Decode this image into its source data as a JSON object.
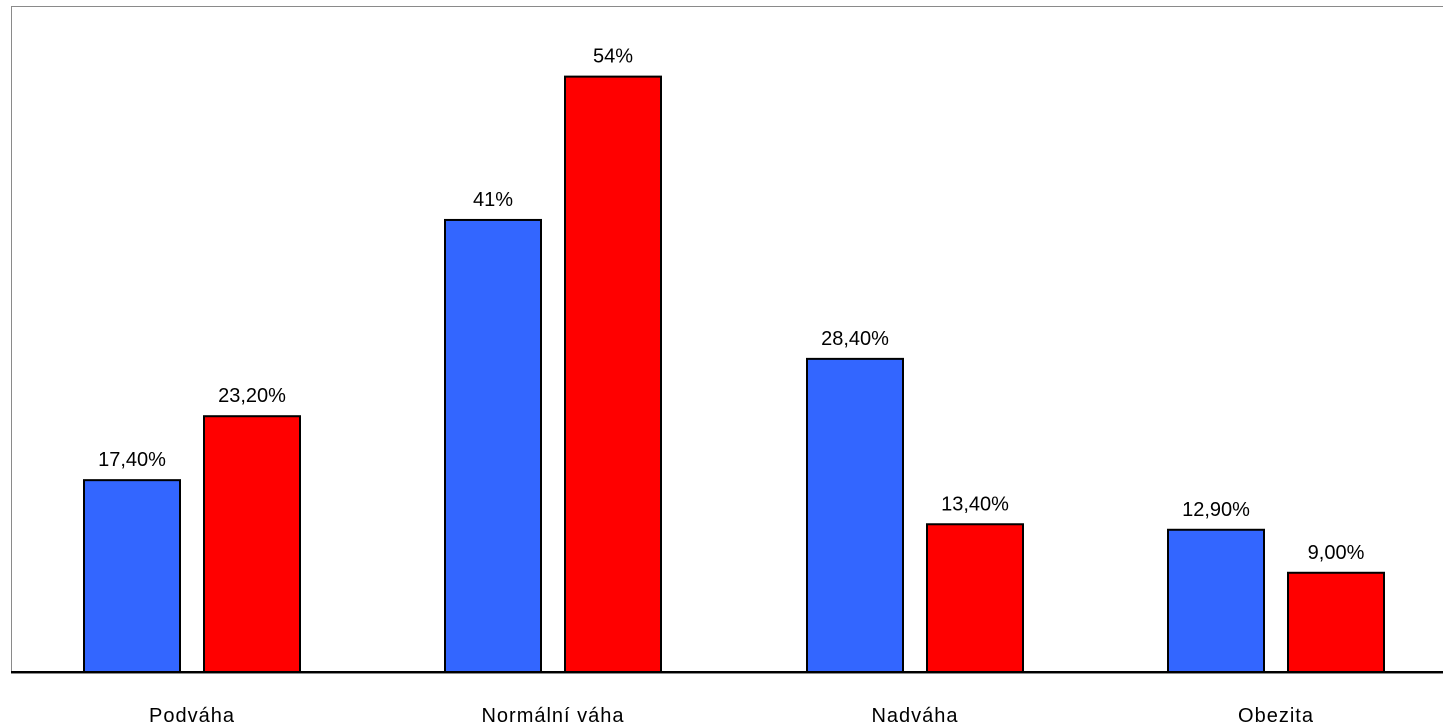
{
  "chart_data": {
    "type": "bar",
    "title": "",
    "xlabel": "",
    "ylabel": "",
    "ylim": [
      0,
      58.5
    ],
    "grid": false,
    "legend": "none",
    "categories": [
      "Podváha",
      "Normální váha",
      "Nadváha",
      "Obezita"
    ],
    "series": [
      {
        "color": "#3366ff",
        "values": [
          17.4,
          41,
          28.4,
          12.9
        ],
        "labels": [
          "17,40%",
          "41%",
          "28,40%",
          "12,90%"
        ]
      },
      {
        "color": "#ff0000",
        "values": [
          23.2,
          54,
          13.4,
          9.0
        ],
        "labels": [
          "23,20%",
          "54%",
          "13,40%",
          "9,00%"
        ]
      }
    ]
  }
}
